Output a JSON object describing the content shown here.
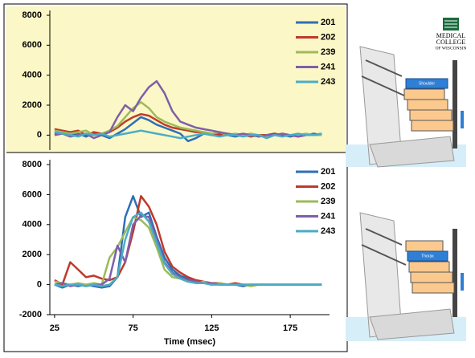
{
  "chart_data": [
    {
      "type": "line",
      "legend": "upper right",
      "grid": false,
      "background": "#fbf7c6",
      "ylim": [
        -1000,
        8000
      ],
      "yticks": [
        0,
        2000,
        4000,
        6000,
        8000
      ],
      "xlim": [
        22,
        200
      ],
      "x": [
        25,
        30,
        35,
        40,
        45,
        50,
        55,
        60,
        65,
        70,
        75,
        80,
        85,
        90,
        95,
        100,
        105,
        110,
        115,
        120,
        125,
        130,
        135,
        140,
        145,
        150,
        155,
        160,
        165,
        170,
        175,
        180,
        185,
        190,
        195
      ],
      "series": [
        {
          "name": "201",
          "color": "#2e6fb7",
          "values": [
            100,
            200,
            0,
            100,
            -100,
            100,
            0,
            -200,
            100,
            400,
            800,
            1200,
            1000,
            700,
            500,
            300,
            100,
            -400,
            -200,
            100,
            0,
            100,
            0,
            -100,
            0,
            0,
            -100,
            0,
            100,
            0,
            -100,
            0,
            0,
            100,
            0
          ]
        },
        {
          "name": "202",
          "color": "#c0392b",
          "values": [
            400,
            300,
            200,
            300,
            0,
            200,
            100,
            200,
            500,
            900,
            1200,
            1400,
            1300,
            1000,
            700,
            500,
            400,
            300,
            200,
            200,
            100,
            0,
            100,
            0,
            0,
            -100,
            0,
            0,
            100,
            0,
            0,
            -100,
            0,
            0,
            100
          ]
        },
        {
          "name": "239",
          "color": "#9bbb59",
          "values": [
            300,
            200,
            100,
            200,
            300,
            0,
            100,
            300,
            600,
            1200,
            1800,
            2200,
            1800,
            1200,
            900,
            700,
            500,
            400,
            300,
            200,
            100,
            200,
            0,
            100,
            0,
            100,
            0,
            -100,
            0,
            100,
            0,
            0,
            100,
            0,
            0
          ]
        },
        {
          "name": "241",
          "color": "#7f5fa8",
          "values": [
            0,
            100,
            -100,
            0,
            100,
            -200,
            0,
            200,
            1200,
            2000,
            1600,
            2500,
            3200,
            3600,
            2800,
            1600,
            900,
            700,
            500,
            400,
            300,
            200,
            100,
            0,
            100,
            0,
            -100,
            0,
            0,
            100,
            0,
            -100,
            0,
            0,
            100
          ]
        },
        {
          "name": "243",
          "color": "#4bacc6",
          "values": [
            200,
            100,
            0,
            -100,
            100,
            0,
            100,
            -100,
            0,
            100,
            200,
            300,
            200,
            100,
            0,
            -100,
            -200,
            -100,
            0,
            100,
            0,
            -100,
            0,
            0,
            -100,
            0,
            0,
            -200,
            0,
            -100,
            0,
            100,
            0,
            0,
            100
          ]
        }
      ]
    },
    {
      "type": "line",
      "legend": "upper right",
      "grid": false,
      "background": "#ffffff",
      "ylim": [
        -2000,
        8000
      ],
      "yticks": [
        -2000,
        0,
        2000,
        4000,
        6000,
        8000
      ],
      "xlim": [
        22,
        200
      ],
      "xticks": [
        25,
        75,
        125,
        175
      ],
      "xlabel": "Time (msec)",
      "x": [
        25,
        30,
        35,
        40,
        45,
        50,
        55,
        60,
        65,
        70,
        75,
        80,
        85,
        90,
        95,
        100,
        105,
        110,
        115,
        120,
        125,
        130,
        135,
        140,
        145,
        150,
        155,
        160,
        165,
        170,
        175,
        180,
        185,
        190,
        195
      ],
      "series": [
        {
          "name": "201",
          "color": "#2e6fb7",
          "values": [
            0,
            -200,
            0,
            -100,
            0,
            -100,
            -200,
            -100,
            500,
            4500,
            5900,
            4500,
            4800,
            3200,
            1800,
            1000,
            600,
            400,
            200,
            100,
            0,
            100,
            0,
            0,
            -100,
            0,
            0,
            0,
            0,
            0,
            0,
            0,
            0,
            0,
            0
          ]
        },
        {
          "name": "202",
          "color": "#c0392b",
          "values": [
            300,
            0,
            1500,
            1000,
            500,
            600,
            400,
            300,
            500,
            1500,
            3500,
            5900,
            5200,
            4000,
            2200,
            1200,
            800,
            500,
            300,
            200,
            100,
            100,
            0,
            100,
            0,
            0,
            0,
            0,
            0,
            0,
            0,
            0,
            0,
            0,
            0
          ]
        },
        {
          "name": "239",
          "color": "#9bbb59",
          "values": [
            200,
            100,
            0,
            100,
            0,
            100,
            0,
            1800,
            2500,
            3500,
            4500,
            4300,
            3800,
            2500,
            1000,
            500,
            400,
            200,
            100,
            200,
            0,
            100,
            0,
            0,
            0,
            -100,
            0,
            0,
            0,
            0,
            0,
            0,
            0,
            0,
            0
          ]
        },
        {
          "name": "241",
          "color": "#7f5fa8",
          "values": [
            0,
            100,
            -100,
            0,
            -100,
            0,
            0,
            400,
            2600,
            1500,
            4000,
            4600,
            4500,
            3000,
            1500,
            800,
            500,
            300,
            200,
            100,
            100,
            0,
            0,
            0,
            0,
            0,
            0,
            0,
            0,
            0,
            0,
            0,
            0,
            0,
            0
          ]
        },
        {
          "name": "243",
          "color": "#4bacc6",
          "values": [
            0,
            -100,
            0,
            0,
            -100,
            0,
            -100,
            0,
            500,
            3000,
            4500,
            4800,
            4200,
            2800,
            1400,
            700,
            400,
            200,
            100,
            100,
            0,
            0,
            0,
            0,
            0,
            0,
            0,
            0,
            0,
            0,
            0,
            0,
            0,
            0,
            0
          ]
        }
      ]
    }
  ],
  "logo": {
    "line1": "MEDICAL",
    "line2": "COLLEGE",
    "line3": "OF WISCONSIN"
  },
  "diagrams": [
    {
      "label": "Shoulder"
    },
    {
      "label": "Thorax"
    }
  ]
}
